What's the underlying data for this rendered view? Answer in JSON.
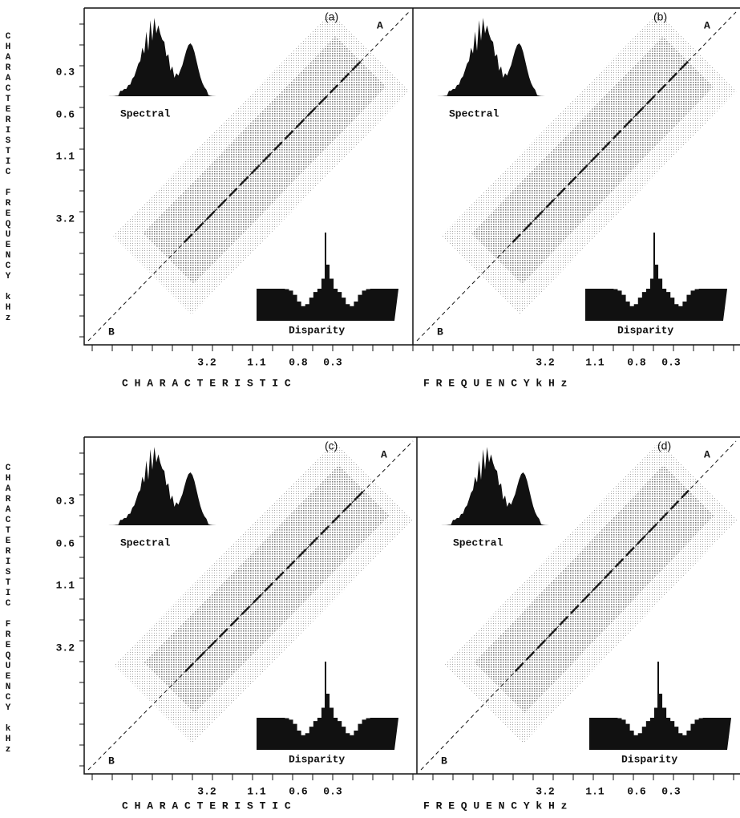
{
  "y_label": "CHARACTERISTIC FREQUENCY kHz",
  "rows": [
    {
      "y_ticks": [
        "0.3",
        "0.6",
        "1.1",
        "3.2"
      ],
      "x_ticks_left": [
        "3.2",
        "1.1",
        "0.8",
        "0.3"
      ],
      "x_ticks_right": [
        "3.2",
        "1.1",
        "0.8",
        "0.3"
      ],
      "x_label_left": "C H A R A C T E R I S T I C",
      "x_label_right": "F R E Q U E N C Y   k H z",
      "panels": [
        {
          "label": "(a)",
          "corner_top": "A",
          "corner_bottom": "B",
          "inset_top": "Spectral",
          "inset_bottom": "Disparity"
        },
        {
          "label": "(b)",
          "corner_top": "A",
          "corner_bottom": "B",
          "inset_top": "Spectral",
          "inset_bottom": "Disparity"
        }
      ]
    },
    {
      "y_ticks": [
        "0.3",
        "0.6",
        "1.1",
        "3.2"
      ],
      "x_ticks_left": [
        "3.2",
        "1.1",
        "0.6",
        "0.3"
      ],
      "x_ticks_right": [
        "3.2",
        "1.1",
        "0.6",
        "0.3"
      ],
      "x_label_left": "C H A R A C T E R I S T I C",
      "x_label_right": "F R E Q U E N C Y   k H z",
      "panels": [
        {
          "label": "(c)",
          "corner_top": "A",
          "corner_bottom": "B",
          "inset_top": "Spectral",
          "inset_bottom": "Disparity"
        },
        {
          "label": "(d)",
          "corner_top": "A",
          "corner_bottom": "B",
          "inset_top": "Spectral",
          "inset_bottom": "Disparity"
        }
      ]
    }
  ]
}
